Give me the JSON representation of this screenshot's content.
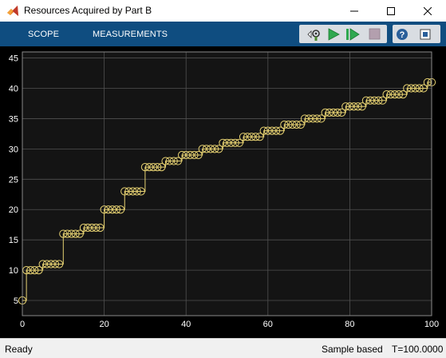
{
  "window": {
    "title": "Resources Acquired by Part B"
  },
  "toolstrip": {
    "tabs": [
      {
        "label": "SCOPE"
      },
      {
        "label": "MEASUREMENTS"
      }
    ],
    "icons": [
      "settings-icon",
      "run-icon",
      "step-forward-icon",
      "stop-icon",
      "help-icon",
      "undock-icon"
    ]
  },
  "colors": {
    "plot_background": "#141414",
    "figure_background": "#000000",
    "axis_text": "#ffffff",
    "grid": "#505050",
    "signal": "#e7d272",
    "toolstrip": "#0f4d80"
  },
  "status": {
    "state": "Ready",
    "mode": "Sample based",
    "time": "T=100.0000"
  },
  "chart_data": {
    "type": "line",
    "style": "stairs with circle markers",
    "xlim": [
      0,
      100
    ],
    "ylim": [
      2.5,
      46
    ],
    "x_ticks": [
      0,
      20,
      40,
      60,
      80,
      100
    ],
    "y_ticks": [
      5,
      10,
      15,
      20,
      25,
      30,
      35,
      40,
      45
    ],
    "grid": true,
    "series": [
      {
        "x": [
          0,
          1,
          2,
          3,
          4,
          5,
          6,
          7,
          8,
          9,
          10,
          11,
          12,
          13,
          14,
          15,
          16,
          17,
          18,
          19,
          20,
          21,
          22,
          23,
          24,
          25,
          26,
          27,
          28,
          29,
          30,
          31,
          32,
          33,
          34,
          35,
          36,
          37,
          38,
          39,
          40,
          41,
          42,
          43,
          44,
          45,
          46,
          47,
          48,
          49,
          50,
          51,
          52,
          53,
          54,
          55,
          56,
          57,
          58,
          59,
          60,
          61,
          62,
          63,
          64,
          65,
          66,
          67,
          68,
          69,
          70,
          71,
          72,
          73,
          74,
          75,
          76,
          77,
          78,
          79,
          80,
          81,
          82,
          83,
          84,
          85,
          86,
          87,
          88,
          89,
          90,
          91,
          92,
          93,
          94,
          95,
          96,
          97,
          98,
          99,
          100
        ],
        "y": [
          5,
          10,
          10,
          10,
          10,
          11,
          11,
          11,
          11,
          11,
          16,
          16,
          16,
          16,
          16,
          17,
          17,
          17,
          17,
          17,
          20,
          20,
          20,
          20,
          20,
          23,
          23,
          23,
          23,
          23,
          27,
          27,
          27,
          27,
          27,
          28,
          28,
          28,
          28,
          29,
          29,
          29,
          29,
          29,
          30,
          30,
          30,
          30,
          30,
          31,
          31,
          31,
          31,
          31,
          32,
          32,
          32,
          32,
          32,
          33,
          33,
          33,
          33,
          33,
          34,
          34,
          34,
          34,
          34,
          35,
          35,
          35,
          35,
          35,
          36,
          36,
          36,
          36,
          36,
          37,
          37,
          37,
          37,
          37,
          38,
          38,
          38,
          38,
          38,
          39,
          39,
          39,
          39,
          39,
          40,
          40,
          40,
          40,
          40,
          41,
          41
        ]
      }
    ]
  }
}
